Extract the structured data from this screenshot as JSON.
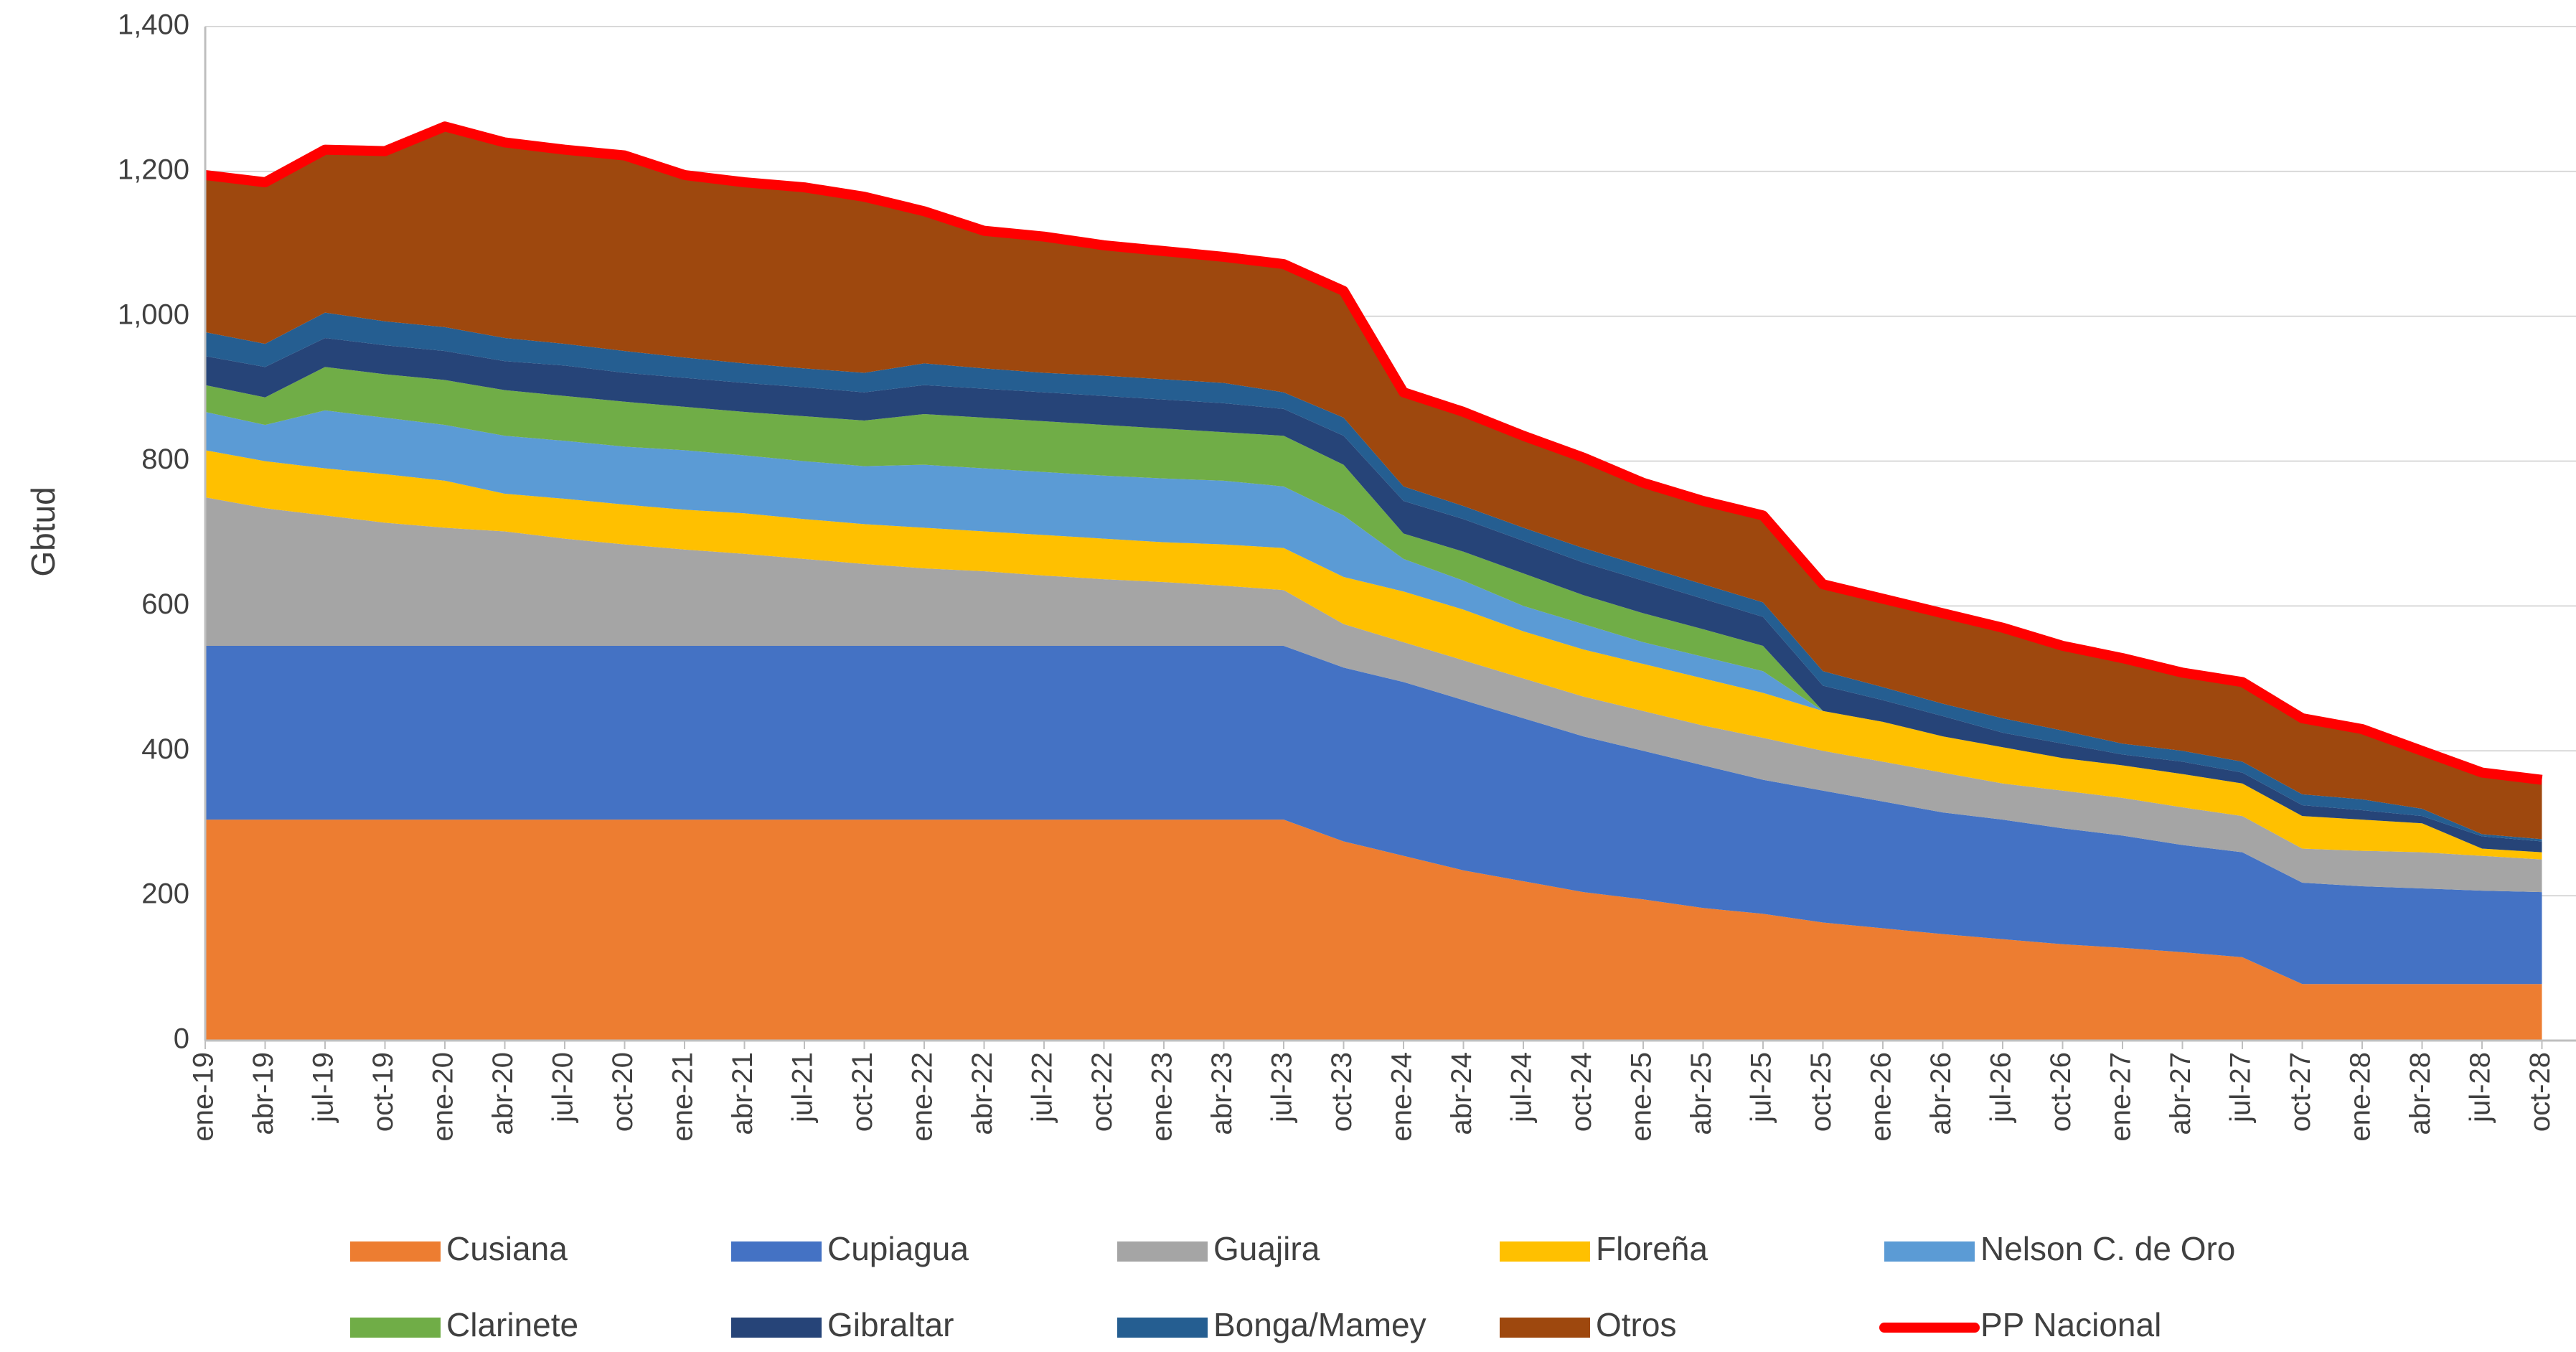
{
  "chart_data": {
    "type": "area",
    "stacked": true,
    "y_label": "Gbtud",
    "ylim": [
      0,
      1400
    ],
    "yticks": [
      0,
      200,
      400,
      600,
      800,
      {
        "value": 1000,
        "label": "1,000"
      },
      {
        "value": 1200,
        "label": "1,200"
      },
      {
        "value": 1400,
        "label": "1,400"
      }
    ],
    "grid": true,
    "legend": "bottom",
    "categories": [
      "ene-19",
      "abr-19",
      "jul-19",
      "oct-19",
      "ene-20",
      "abr-20",
      "jul-20",
      "oct-20",
      "ene-21",
      "abr-21",
      "jul-21",
      "oct-21",
      "ene-22",
      "abr-22",
      "jul-22",
      "oct-22",
      "ene-23",
      "abr-23",
      "jul-23",
      "oct-23",
      "ene-24",
      "abr-24",
      "jul-24",
      "oct-24",
      "ene-25",
      "abr-25",
      "jul-25",
      "oct-25",
      "ene-26",
      "abr-26",
      "jul-26",
      "oct-26",
      "ene-27",
      "abr-27",
      "jul-27",
      "oct-27",
      "ene-28",
      "abr-28",
      "jul-28",
      "oct-28"
    ],
    "series": [
      {
        "name": "Cusiana",
        "color": "#ed7d31",
        "values": [
          305,
          305,
          305,
          305,
          305,
          305,
          305,
          305,
          305,
          305,
          305,
          305,
          305,
          305,
          305,
          305,
          305,
          305,
          305,
          275,
          255,
          235,
          220,
          205,
          195,
          183,
          175,
          163,
          155,
          147,
          140,
          133,
          128,
          122,
          115,
          78,
          78,
          78,
          78,
          78
        ]
      },
      {
        "name": "Cupiagua",
        "color": "#4472c4",
        "values": [
          240,
          240,
          240,
          240,
          240,
          240,
          240,
          240,
          240,
          240,
          240,
          240,
          240,
          240,
          240,
          240,
          240,
          240,
          240,
          240,
          240,
          235,
          225,
          215,
          205,
          197,
          185,
          182,
          175,
          168,
          165,
          160,
          155,
          148,
          145,
          140,
          135,
          132,
          129,
          127
        ]
      },
      {
        "name": "Guajira",
        "color": "#a5a5a5",
        "values": [
          205,
          190,
          180,
          170,
          163,
          158,
          148,
          140,
          133,
          127,
          120,
          113,
          107,
          103,
          97,
          92,
          88,
          83,
          77,
          60,
          55,
          55,
          55,
          55,
          55,
          55,
          58,
          55,
          55,
          55,
          50,
          52,
          52,
          52,
          50,
          47,
          49,
          50,
          48,
          45
        ]
      },
      {
        "name": "Floreña",
        "color": "#ffc000",
        "values": [
          65,
          65,
          65,
          67,
          65,
          52,
          55,
          55,
          55,
          56,
          55,
          55,
          56,
          55,
          56,
          56,
          55,
          57,
          58,
          65,
          70,
          70,
          65,
          65,
          65,
          65,
          62,
          55,
          55,
          50,
          50,
          45,
          45,
          46,
          45,
          45,
          43,
          40,
          10,
          10
        ]
      },
      {
        "name": "Nelson C. de Oro",
        "color": "#5b9bd5",
        "values": [
          53,
          50,
          80,
          78,
          77,
          80,
          80,
          80,
          82,
          80,
          80,
          80,
          87,
          87,
          87,
          87,
          88,
          88,
          85,
          85,
          45,
          40,
          35,
          35,
          30,
          30,
          30,
          0,
          0,
          0,
          0,
          0,
          0,
          0,
          0,
          0,
          0,
          0,
          0,
          0
        ]
      },
      {
        "name": "Clarinete",
        "color": "#70ad47",
        "values": [
          37,
          38,
          60,
          60,
          62,
          63,
          62,
          62,
          60,
          60,
          62,
          63,
          70,
          70,
          70,
          70,
          69,
          67,
          70,
          70,
          35,
          40,
          45,
          40,
          40,
          38,
          35,
          0,
          0,
          0,
          0,
          0,
          0,
          0,
          0,
          0,
          0,
          0,
          0,
          0
        ]
      },
      {
        "name": "Gibraltar",
        "color": "#264478",
        "values": [
          40,
          42,
          40,
          40,
          40,
          40,
          42,
          40,
          40,
          40,
          40,
          39,
          40,
          40,
          40,
          40,
          40,
          40,
          37,
          40,
          45,
          45,
          45,
          45,
          45,
          42,
          40,
          35,
          30,
          28,
          20,
          20,
          15,
          17,
          15,
          15,
          13,
          10,
          17,
          15
        ]
      },
      {
        "name": "Bonga/Mamey",
        "color": "#255e91",
        "values": [
          33,
          32,
          35,
          33,
          33,
          32,
          30,
          30,
          28,
          27,
          26,
          27,
          30,
          28,
          27,
          28,
          28,
          28,
          23,
          25,
          20,
          18,
          18,
          20,
          20,
          20,
          20,
          20,
          18,
          17,
          20,
          18,
          15,
          15,
          15,
          15,
          15,
          10,
          3,
          3
        ]
      },
      {
        "name": "Otros",
        "color": "#9e480e",
        "values": [
          217,
          223,
          225,
          235,
          277,
          270,
          268,
          270,
          252,
          250,
          250,
          243,
          210,
          190,
          188,
          180,
          177,
          174,
          177,
          175,
          130,
          130,
          127,
          125,
          115,
          115,
          120,
          120,
          122,
          125,
          125,
          117,
          118,
          108,
          110,
          105,
          97,
          80,
          85,
          82
        ]
      },
      {
        "name": "PP Nacional",
        "color": "#ff0000",
        "type": "line",
        "values": [
          1195,
          1185,
          1230,
          1228,
          1262,
          1240,
          1230,
          1222,
          1195,
          1185,
          1178,
          1165,
          1145,
          1118,
          1110,
          1098,
          1090,
          1082,
          1072,
          1035,
          895,
          868,
          835,
          805,
          770,
          745,
          725,
          630,
          610,
          590,
          570,
          545,
          528,
          508,
          495,
          445,
          430,
          400,
          370,
          360
        ]
      }
    ]
  }
}
